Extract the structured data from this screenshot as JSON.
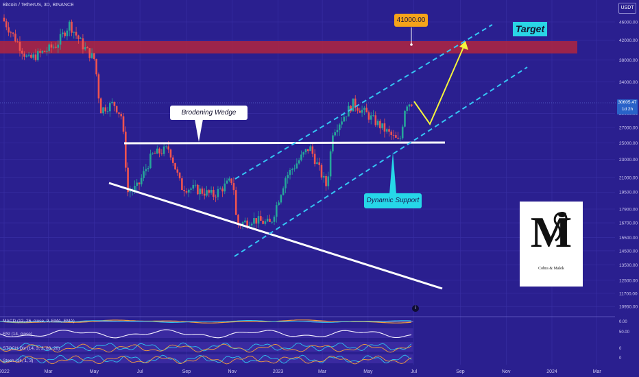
{
  "header": {
    "symbol": "Bitcoin / TetherUS, 3D, BINANCE",
    "currency": "USDT"
  },
  "price_tag": {
    "price": "30605.47",
    "countdown": "1d 2h"
  },
  "annotations": {
    "target_price": "41000.00",
    "target_label": "Target",
    "wedge_label": "Brodening Wedge",
    "support_label": "Dynamic Support",
    "info_icon": "i"
  },
  "logo": {
    "letter": "M",
    "caption": "Cobra & Malek"
  },
  "indicators": {
    "macd": "MACD (12, 26, close, 9, EMA, EMA)",
    "rsi": "RSI (14, close)",
    "stoch_div": "STOCH Div (14, 3, 3, 80, 20)",
    "stoch": "Stoch (14, 1, 3)"
  },
  "colors": {
    "background": "#2a1f8f",
    "bull": "#26a69a",
    "bear": "#ef5350",
    "resistance_zone": "#b0263f",
    "channel": "#35c6f5",
    "projection": "#f5f53c"
  },
  "chart_data": {
    "type": "candlestick",
    "title": "Bitcoin / TetherUS, 3D, BINANCE",
    "x_ticks": [
      "2022",
      "Mar",
      "May",
      "Jul",
      "Sep",
      "Nov",
      "2023",
      "Mar",
      "May",
      "Jul",
      "Sep",
      "Nov",
      "2024",
      "Mar"
    ],
    "y_ticks": [
      46000,
      42000,
      38000,
      34000,
      29000,
      27000,
      25000,
      23000,
      21000,
      19500,
      17900,
      16700,
      15500,
      14500,
      13500,
      12500,
      11700,
      10950
    ],
    "y_scale": "log",
    "path": [
      [
        "2022-01-01",
        47000
      ],
      [
        "2022-01-20",
        42000
      ],
      [
        "2022-02-05",
        38000
      ],
      [
        "2022-02-25",
        39500
      ],
      [
        "2022-03-15",
        41000
      ],
      [
        "2022-04-01",
        45500
      ],
      [
        "2022-04-20",
        40500
      ],
      [
        "2022-05-05",
        38000
      ],
      [
        "2022-05-12",
        29500
      ],
      [
        "2022-05-30",
        30500
      ],
      [
        "2022-06-10",
        28500
      ],
      [
        "2022-06-18",
        19500
      ],
      [
        "2022-07-01",
        20000
      ],
      [
        "2022-07-20",
        23500
      ],
      [
        "2022-08-12",
        24300
      ],
      [
        "2022-08-28",
        20000
      ],
      [
        "2022-09-15",
        19800
      ],
      [
        "2022-10-10",
        19200
      ],
      [
        "2022-11-05",
        20800
      ],
      [
        "2022-11-10",
        16500
      ],
      [
        "2022-12-01",
        17000
      ],
      [
        "2022-12-25",
        16600
      ],
      [
        "2023-01-14",
        21000
      ],
      [
        "2023-02-15",
        24500
      ],
      [
        "2023-03-10",
        20000
      ],
      [
        "2023-03-18",
        26500
      ],
      [
        "2023-04-14",
        30500
      ],
      [
        "2023-05-01",
        29000
      ],
      [
        "2023-05-25",
        26800
      ],
      [
        "2023-06-15",
        25000
      ],
      [
        "2023-06-23",
        30500
      ],
      [
        "2023-06-30",
        30605
      ]
    ],
    "resistance_zone": [
      39600,
      41800
    ],
    "target": 41000,
    "horizontal_level": 24800,
    "last_price": 30605.47
  }
}
